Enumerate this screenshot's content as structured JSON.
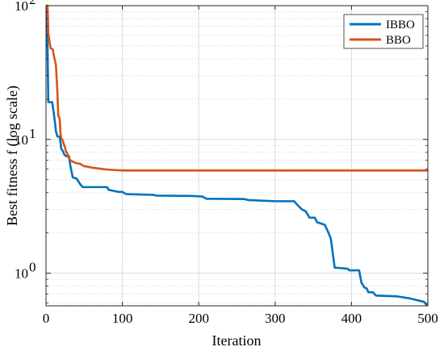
{
  "chart_data": {
    "type": "line",
    "title": "",
    "xlabel": "Iteration",
    "ylabel": "Best fitness f (log scale)",
    "xlim": [
      0,
      500
    ],
    "ylim": [
      0.57,
      100
    ],
    "yscale": "log",
    "grid": true,
    "legend_position": "top-right",
    "x_ticks": [
      {
        "value": 0,
        "label": "0"
      },
      {
        "value": 100,
        "label": "100"
      },
      {
        "value": 200,
        "label": "200"
      },
      {
        "value": 300,
        "label": "300"
      },
      {
        "value": 400,
        "label": "400"
      },
      {
        "value": 500,
        "label": "500"
      }
    ],
    "y_ticks": [
      {
        "value": 1,
        "base": "10",
        "exp": "0"
      },
      {
        "value": 10,
        "base": "10",
        "exp": "1"
      },
      {
        "value": 100,
        "base": "10",
        "exp": "2"
      }
    ],
    "series": [
      {
        "name": "IBBO",
        "color": "#0072BD",
        "points": [
          [
            0,
            100
          ],
          [
            1,
            100
          ],
          [
            2,
            50
          ],
          [
            3,
            19
          ],
          [
            8,
            19
          ],
          [
            10,
            16
          ],
          [
            12,
            13
          ],
          [
            13,
            11.5
          ],
          [
            15,
            10.5
          ],
          [
            18,
            10.5
          ],
          [
            20,
            8.5
          ],
          [
            22,
            8.2
          ],
          [
            24,
            7.7
          ],
          [
            26,
            7.5
          ],
          [
            30,
            7.5
          ],
          [
            32,
            6.3
          ],
          [
            35,
            5.2
          ],
          [
            40,
            5.1
          ],
          [
            45,
            4.6
          ],
          [
            48,
            4.4
          ],
          [
            80,
            4.4
          ],
          [
            82,
            4.2
          ],
          [
            95,
            4.05
          ],
          [
            100,
            4.05
          ],
          [
            105,
            3.9
          ],
          [
            140,
            3.85
          ],
          [
            145,
            3.8
          ],
          [
            190,
            3.78
          ],
          [
            205,
            3.74
          ],
          [
            210,
            3.6
          ],
          [
            260,
            3.58
          ],
          [
            265,
            3.52
          ],
          [
            300,
            3.45
          ],
          [
            325,
            3.45
          ],
          [
            330,
            3.2
          ],
          [
            335,
            3.0
          ],
          [
            340,
            2.9
          ],
          [
            345,
            2.6
          ],
          [
            352,
            2.6
          ],
          [
            355,
            2.4
          ],
          [
            360,
            2.35
          ],
          [
            365,
            2.3
          ],
          [
            370,
            2.0
          ],
          [
            373,
            1.8
          ],
          [
            378,
            1.1
          ],
          [
            395,
            1.08
          ],
          [
            397,
            1.05
          ],
          [
            410,
            1.05
          ],
          [
            413,
            0.85
          ],
          [
            417,
            0.78
          ],
          [
            420,
            0.77
          ],
          [
            422,
            0.72
          ],
          [
            428,
            0.72
          ],
          [
            432,
            0.68
          ],
          [
            460,
            0.67
          ],
          [
            475,
            0.65
          ],
          [
            490,
            0.62
          ],
          [
            495,
            0.61
          ],
          [
            498,
            0.58
          ],
          [
            500,
            0.58
          ]
        ]
      },
      {
        "name": "BBO",
        "color": "#D95319",
        "points": [
          [
            0,
            100
          ],
          [
            2,
            100
          ],
          [
            3,
            62
          ],
          [
            6,
            48
          ],
          [
            9,
            47
          ],
          [
            10,
            43
          ],
          [
            12,
            38
          ],
          [
            13,
            36
          ],
          [
            15,
            22
          ],
          [
            16,
            15
          ],
          [
            17,
            14.8
          ],
          [
            18,
            14
          ],
          [
            19,
            11
          ],
          [
            20,
            10.2
          ],
          [
            22,
            9.8
          ],
          [
            23,
            9.3
          ],
          [
            24,
            9.0
          ],
          [
            25,
            8.7
          ],
          [
            26,
            8.2
          ],
          [
            28,
            7.8
          ],
          [
            30,
            7.2
          ],
          [
            33,
            6.9
          ],
          [
            38,
            6.7
          ],
          [
            45,
            6.55
          ],
          [
            50,
            6.3
          ],
          [
            55,
            6.25
          ],
          [
            60,
            6.15
          ],
          [
            65,
            6.1
          ],
          [
            70,
            6.05
          ],
          [
            75,
            6.0
          ],
          [
            80,
            5.95
          ],
          [
            90,
            5.9
          ],
          [
            95,
            5.88
          ],
          [
            100,
            5.85
          ],
          [
            150,
            5.85
          ],
          [
            200,
            5.85
          ],
          [
            300,
            5.85
          ],
          [
            400,
            5.85
          ],
          [
            500,
            5.85
          ]
        ]
      }
    ]
  },
  "colors": {
    "ibbo": "#0072BD",
    "bbo": "#D95319",
    "grid": "#d6d6d6",
    "axis": "#262626"
  }
}
